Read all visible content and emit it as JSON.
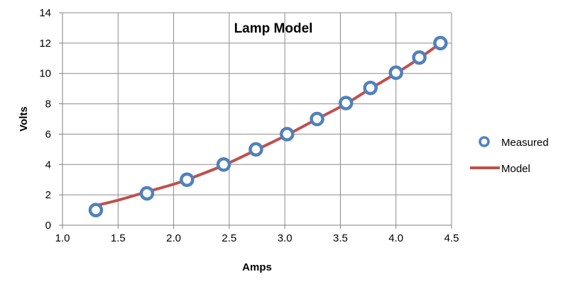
{
  "chart_data": {
    "type": "scatter",
    "title": "Lamp Model",
    "xlabel": "Amps",
    "ylabel": "Volts",
    "xlim": [
      1.0,
      4.5
    ],
    "ylim": [
      0,
      14
    ],
    "x_ticks": [
      "1.0",
      "1.5",
      "2.0",
      "2.5",
      "3.0",
      "3.5",
      "4.0",
      "4.5"
    ],
    "y_ticks": [
      "0",
      "2",
      "4",
      "6",
      "8",
      "10",
      "12",
      "14"
    ],
    "grid": true,
    "legend_position": "right",
    "series": [
      {
        "name": "Measured",
        "style": "markers",
        "color": "#4f81bd",
        "points": [
          {
            "x": 1.3,
            "y": 1.0
          },
          {
            "x": 1.76,
            "y": 2.1
          },
          {
            "x": 2.12,
            "y": 3.0
          },
          {
            "x": 2.45,
            "y": 4.0
          },
          {
            "x": 2.74,
            "y": 5.0
          },
          {
            "x": 3.02,
            "y": 6.0
          },
          {
            "x": 3.29,
            "y": 7.0
          },
          {
            "x": 3.55,
            "y": 8.05
          },
          {
            "x": 3.77,
            "y": 9.05
          },
          {
            "x": 4.0,
            "y": 10.05
          },
          {
            "x": 4.21,
            "y": 11.05
          },
          {
            "x": 4.4,
            "y": 12.0
          }
        ]
      },
      {
        "name": "Model",
        "style": "line",
        "color": "#c0504d",
        "points": [
          {
            "x": 1.3,
            "y": 1.3
          },
          {
            "x": 1.5,
            "y": 1.65
          },
          {
            "x": 1.76,
            "y": 2.2
          },
          {
            "x": 2.0,
            "y": 2.7
          },
          {
            "x": 2.12,
            "y": 3.0
          },
          {
            "x": 2.45,
            "y": 3.95
          },
          {
            "x": 2.74,
            "y": 4.95
          },
          {
            "x": 3.02,
            "y": 5.95
          },
          {
            "x": 3.29,
            "y": 7.0
          },
          {
            "x": 3.55,
            "y": 8.0
          },
          {
            "x": 3.77,
            "y": 9.0
          },
          {
            "x": 4.0,
            "y": 10.0
          },
          {
            "x": 4.21,
            "y": 11.0
          },
          {
            "x": 4.4,
            "y": 12.0
          }
        ]
      }
    ]
  }
}
